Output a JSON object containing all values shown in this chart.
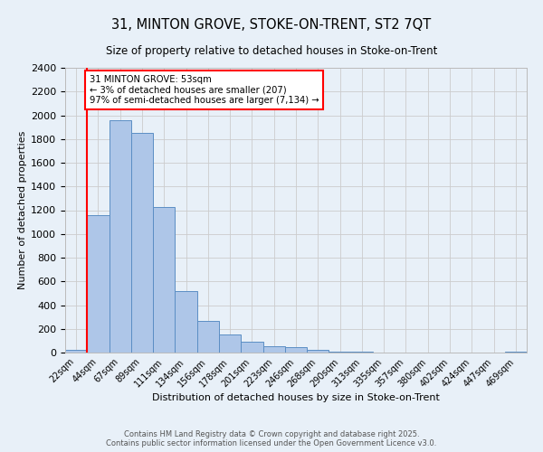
{
  "title_line1": "31, MINTON GROVE, STOKE-ON-TRENT, ST2 7QT",
  "title_line2": "Size of property relative to detached houses in Stoke-on-Trent",
  "xlabel": "Distribution of detached houses by size in Stoke-on-Trent",
  "ylabel": "Number of detached properties",
  "bar_labels": [
    "22sqm",
    "44sqm",
    "67sqm",
    "89sqm",
    "111sqm",
    "134sqm",
    "156sqm",
    "178sqm",
    "201sqm",
    "223sqm",
    "246sqm",
    "268sqm",
    "290sqm",
    "313sqm",
    "335sqm",
    "357sqm",
    "380sqm",
    "402sqm",
    "424sqm",
    "447sqm",
    "469sqm"
  ],
  "bar_values": [
    25,
    1160,
    1960,
    1850,
    1230,
    520,
    270,
    155,
    90,
    52,
    42,
    20,
    8,
    5,
    2,
    2,
    1,
    1,
    1,
    1,
    10
  ],
  "bar_color": "#aec6e8",
  "bar_edge_color": "#5b8ec4",
  "annotation_text": "31 MINTON GROVE: 53sqm\n← 3% of detached houses are smaller (207)\n97% of semi-detached houses are larger (7,134) →",
  "annotation_box_color": "white",
  "annotation_box_edge_color": "red",
  "red_line_color": "red",
  "ylim": [
    0,
    2400
  ],
  "yticks": [
    0,
    200,
    400,
    600,
    800,
    1000,
    1200,
    1400,
    1600,
    1800,
    2000,
    2200,
    2400
  ],
  "grid_color": "#cccccc",
  "bg_color": "#e8f0f8",
  "footer_line1": "Contains HM Land Registry data © Crown copyright and database right 2025.",
  "footer_line2": "Contains public sector information licensed under the Open Government Licence v3.0."
}
